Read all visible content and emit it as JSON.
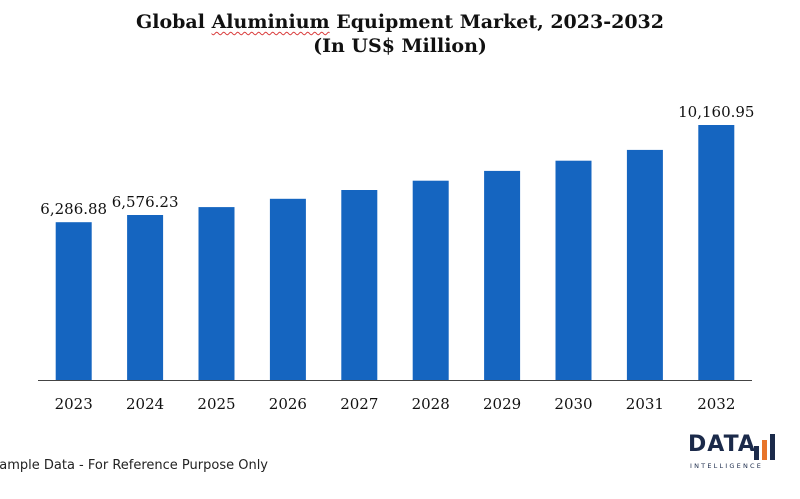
{
  "title": {
    "line1_word1": "Global",
    "line1_word2": "Aluminium",
    "line1_rest": "Equipment Market, 2023-2032",
    "line2": "(In US$ Million)"
  },
  "footnote": "Sample Data - For Reference Purpose Only",
  "logo": {
    "word": "DATA",
    "sub": "INTELLIGENCE"
  },
  "colors": {
    "bar": "#1565c0",
    "axis": "#444444",
    "text": "#111111",
    "logo_dark": "#1b2a4a",
    "logo_accent": "#e8742a"
  },
  "chart_data": {
    "type": "bar",
    "title": "Global Aluminium Equipment Market, 2023-2032",
    "subtitle": "(In US$ Million)",
    "categories": [
      "2023",
      "2024",
      "2025",
      "2026",
      "2027",
      "2028",
      "2029",
      "2030",
      "2031",
      "2032"
    ],
    "values": [
      6286.88,
      6576.23,
      6890,
      7220,
      7570,
      7940,
      8330,
      8740,
      9170,
      10160.95
    ],
    "data_labels": [
      "6,286.88",
      "6,576.23",
      "",
      "",
      "",
      "",
      "",
      "",
      "",
      "10,160.95"
    ],
    "xlabel": "",
    "ylabel": "",
    "ylim": [
      0,
      11000
    ],
    "grid": false,
    "legend": "none"
  }
}
